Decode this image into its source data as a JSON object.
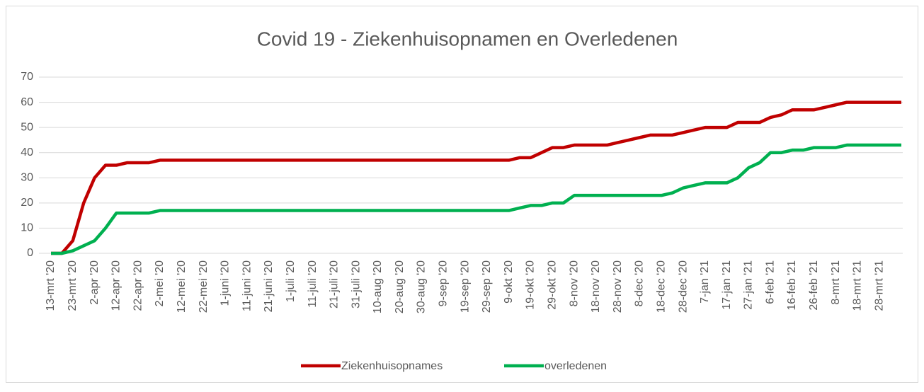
{
  "chart_data": {
    "type": "line",
    "title": "Covid 19 - Ziekenhuisopnamen en Overledenen",
    "categories": [
      "13-mrt '20",
      null,
      "23-mrt '20",
      null,
      "2-apr '20",
      null,
      "12-apr '20",
      null,
      "22-apr '20",
      null,
      "2-mei '20",
      null,
      "12-mei '20",
      null,
      "22-mei '20",
      null,
      "1-juni '20",
      null,
      "11-juni '20",
      null,
      "21-juni '20",
      null,
      "1-juli '20",
      null,
      "11-juli '20",
      null,
      "21-juli '20",
      null,
      "31-juli '20",
      null,
      "10-aug '20",
      null,
      "20-aug '20",
      null,
      "30-aug '20",
      null,
      "9-sep '20",
      null,
      "19-sep '20",
      null,
      "29-sep '20",
      null,
      "9-okt '20",
      null,
      "19-okt '20",
      null,
      "29-okt '20",
      null,
      "8-nov '20",
      null,
      "18-nov '20",
      null,
      "28-nov '20",
      null,
      "8-dec '20",
      null,
      "18-dec '20",
      null,
      "28-dec '20",
      null,
      "7-jan '21",
      null,
      "17-jan '21",
      null,
      "27-jan '21",
      null,
      "6-feb '21",
      null,
      "16-feb '21",
      null,
      "26-feb '21",
      null,
      "8-mrt '21",
      null,
      "18-mrt '21",
      null,
      "28-mrt '21",
      null,
      null
    ],
    "series": [
      {
        "name": "Ziekenhuisopnames",
        "color": "#c00000",
        "values": [
          0,
          0,
          5,
          20,
          30,
          35,
          35,
          36,
          36,
          36,
          37,
          37,
          37,
          37,
          37,
          37,
          37,
          37,
          37,
          37,
          37,
          37,
          37,
          37,
          37,
          37,
          37,
          37,
          37,
          37,
          37,
          37,
          37,
          37,
          37,
          37,
          37,
          37,
          37,
          37,
          37,
          37,
          37,
          38,
          38,
          40,
          42,
          42,
          43,
          43,
          43,
          43,
          44,
          45,
          46,
          47,
          47,
          47,
          48,
          49,
          50,
          50,
          50,
          52,
          52,
          52,
          54,
          55,
          57,
          57,
          57,
          58,
          59,
          60,
          60,
          60,
          60,
          60,
          60
        ]
      },
      {
        "name": "overledenen",
        "color": "#00b050",
        "values": [
          0,
          0,
          1,
          3,
          5,
          10,
          16,
          16,
          16,
          16,
          17,
          17,
          17,
          17,
          17,
          17,
          17,
          17,
          17,
          17,
          17,
          17,
          17,
          17,
          17,
          17,
          17,
          17,
          17,
          17,
          17,
          17,
          17,
          17,
          17,
          17,
          17,
          17,
          17,
          17,
          17,
          17,
          17,
          18,
          19,
          19,
          20,
          20,
          23,
          23,
          23,
          23,
          23,
          23,
          23,
          23,
          23,
          24,
          26,
          27,
          28,
          28,
          28,
          30,
          34,
          36,
          40,
          40,
          41,
          41,
          42,
          42,
          42,
          43,
          43,
          43,
          43,
          43,
          43
        ]
      }
    ],
    "ylim": [
      0,
      70
    ],
    "yticks": [
      0,
      10,
      20,
      30,
      40,
      50,
      60,
      70
    ],
    "grid": true,
    "legend": "bottom"
  }
}
